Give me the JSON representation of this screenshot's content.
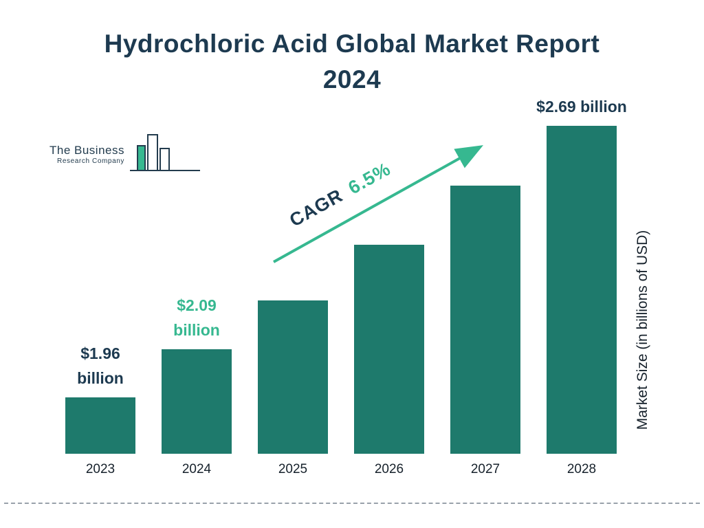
{
  "title": "Hydrochloric Acid Global Market Report 2024",
  "logo": {
    "line1": "The Business",
    "line2": "Research Company"
  },
  "cagr": {
    "label": "CAGR",
    "value": "6.5%"
  },
  "colors": {
    "bar": "#1E7A6C",
    "accent": "#36B890",
    "title": "#1D3A50"
  },
  "chart_data": {
    "type": "bar",
    "title": "Hydrochloric Acid Global Market Report 2024",
    "categories": [
      "2023",
      "2024",
      "2025",
      "2026",
      "2027",
      "2028"
    ],
    "values": [
      1.96,
      2.09,
      2.22,
      2.37,
      2.53,
      2.69
    ],
    "xlabel": "",
    "ylabel": "Market Size (in billions of USD)",
    "legend": false,
    "grid": false,
    "annotations": [
      {
        "text": "CAGR 6.5%",
        "type": "growth-arrow"
      }
    ],
    "value_labels": [
      {
        "bar": 0,
        "lines": [
          "$1.96",
          "billion"
        ],
        "color": "#1D3A50"
      },
      {
        "bar": 1,
        "lines": [
          "$2.09",
          "billion"
        ],
        "color": "#36B890"
      },
      {
        "bar": 5,
        "lines": [
          "$2.69 billion"
        ],
        "color": "#1D3A50"
      }
    ]
  }
}
